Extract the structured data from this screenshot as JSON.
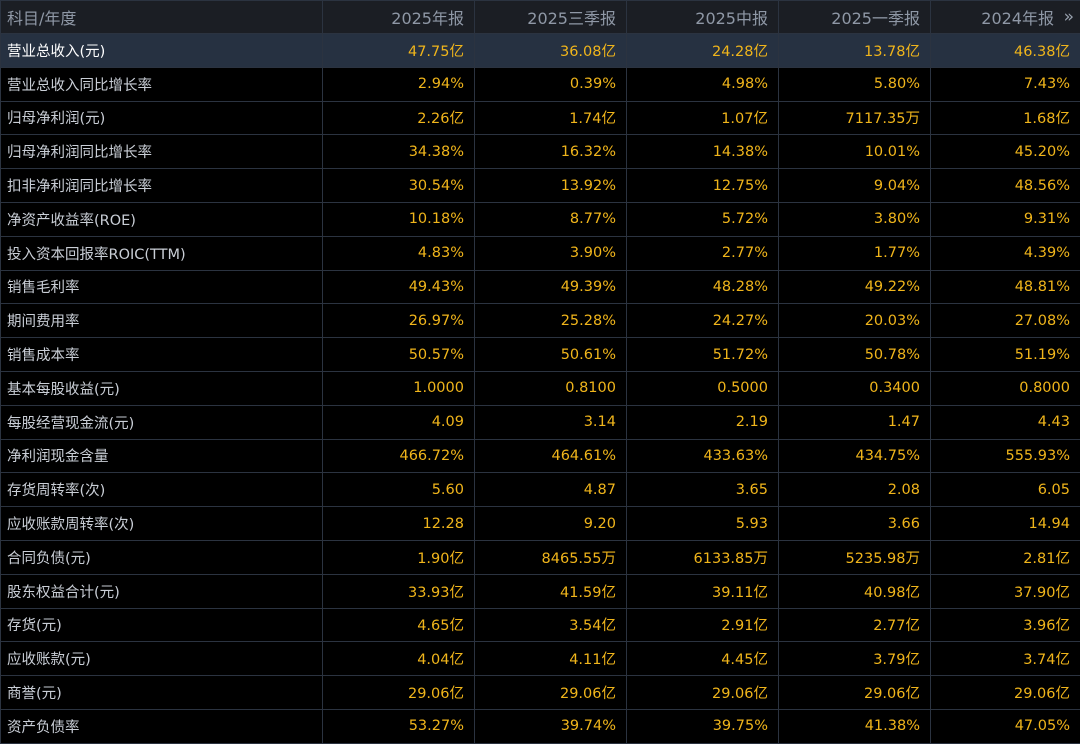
{
  "header": {
    "label": "科目/年度",
    "periods": [
      "2025年报",
      "2025三季报",
      "2025中报",
      "2025一季报",
      "2024年报"
    ],
    "more_icon": "»"
  },
  "rows": [
    {
      "label": "营业总收入(元)",
      "values": [
        "47.75亿",
        "36.08亿",
        "24.28亿",
        "13.78亿",
        "46.38亿"
      ]
    },
    {
      "label": "营业总收入同比增长率",
      "values": [
        "2.94%",
        "0.39%",
        "4.98%",
        "5.80%",
        "7.43%"
      ]
    },
    {
      "label": "归母净利润(元)",
      "values": [
        "2.26亿",
        "1.74亿",
        "1.07亿",
        "7117.35万",
        "1.68亿"
      ]
    },
    {
      "label": "归母净利润同比增长率",
      "values": [
        "34.38%",
        "16.32%",
        "14.38%",
        "10.01%",
        "45.20%"
      ]
    },
    {
      "label": "扣非净利润同比增长率",
      "values": [
        "30.54%",
        "13.92%",
        "12.75%",
        "9.04%",
        "48.56%"
      ]
    },
    {
      "label": "净资产收益率(ROE)",
      "values": [
        "10.18%",
        "8.77%",
        "5.72%",
        "3.80%",
        "9.31%"
      ]
    },
    {
      "label": "投入资本回报率ROIC(TTM)",
      "values": [
        "4.83%",
        "3.90%",
        "2.77%",
        "1.77%",
        "4.39%"
      ]
    },
    {
      "label": "销售毛利率",
      "values": [
        "49.43%",
        "49.39%",
        "48.28%",
        "49.22%",
        "48.81%"
      ]
    },
    {
      "label": "期间费用率",
      "values": [
        "26.97%",
        "25.28%",
        "24.27%",
        "20.03%",
        "27.08%"
      ]
    },
    {
      "label": "销售成本率",
      "values": [
        "50.57%",
        "50.61%",
        "51.72%",
        "50.78%",
        "51.19%"
      ]
    },
    {
      "label": "基本每股收益(元)",
      "values": [
        "1.0000",
        "0.8100",
        "0.5000",
        "0.3400",
        "0.8000"
      ]
    },
    {
      "label": "每股经营现金流(元)",
      "values": [
        "4.09",
        "3.14",
        "2.19",
        "1.47",
        "4.43"
      ]
    },
    {
      "label": "净利润现金含量",
      "values": [
        "466.72%",
        "464.61%",
        "433.63%",
        "434.75%",
        "555.93%"
      ]
    },
    {
      "label": "存货周转率(次)",
      "values": [
        "5.60",
        "4.87",
        "3.65",
        "2.08",
        "6.05"
      ]
    },
    {
      "label": "应收账款周转率(次)",
      "values": [
        "12.28",
        "9.20",
        "5.93",
        "3.66",
        "14.94"
      ]
    },
    {
      "label": "合同负债(元)",
      "values": [
        "1.90亿",
        "8465.55万",
        "6133.85万",
        "5235.98万",
        "2.81亿"
      ]
    },
    {
      "label": "股东权益合计(元)",
      "values": [
        "33.93亿",
        "41.59亿",
        "39.11亿",
        "40.98亿",
        "37.90亿"
      ]
    },
    {
      "label": "存货(元)",
      "values": [
        "4.65亿",
        "3.54亿",
        "2.91亿",
        "2.77亿",
        "3.96亿"
      ]
    },
    {
      "label": "应收账款(元)",
      "values": [
        "4.04亿",
        "4.11亿",
        "4.45亿",
        "3.79亿",
        "3.74亿"
      ]
    },
    {
      "label": "商誉(元)",
      "values": [
        "29.06亿",
        "29.06亿",
        "29.06亿",
        "29.06亿",
        "29.06亿"
      ]
    },
    {
      "label": "资产负债率",
      "values": [
        "53.27%",
        "39.74%",
        "39.75%",
        "41.38%",
        "47.05%"
      ]
    }
  ],
  "colors": {
    "background": "#000000",
    "header_bg": "#1b1e24",
    "highlight_row_bg": "#263141",
    "label_text": "#c9ced6",
    "value_text": "#f0b51b",
    "grid_line": "#2b3340"
  }
}
